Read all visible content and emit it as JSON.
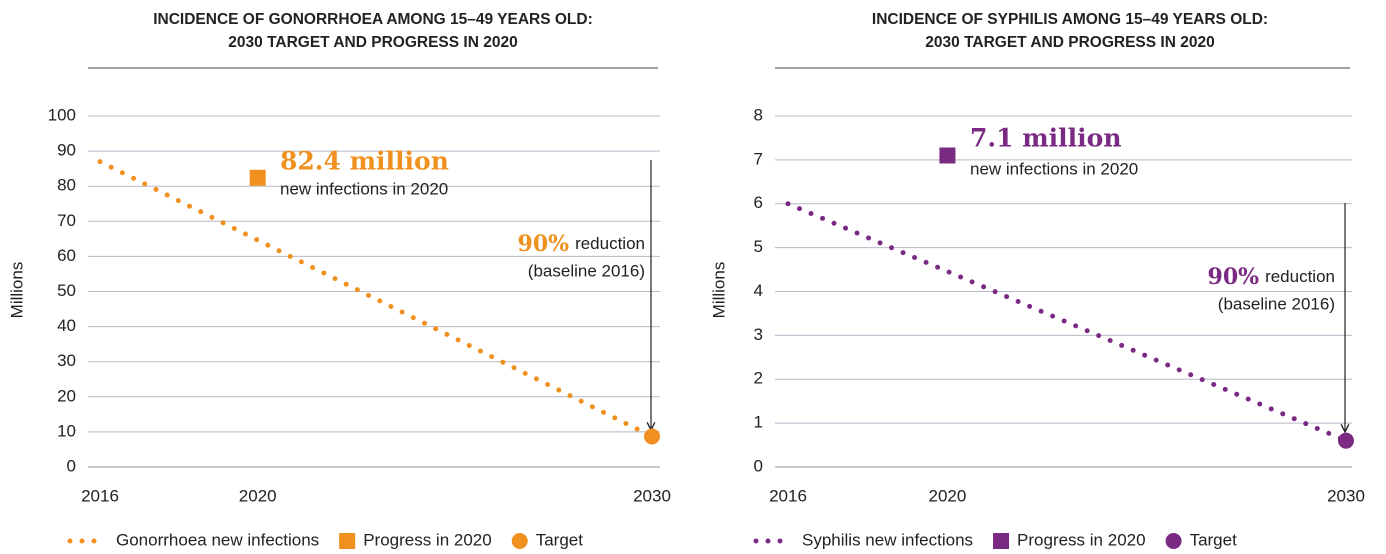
{
  "chart_data": [
    {
      "type": "line",
      "title": [
        "INCIDENCE OF GONORRHOEA AMONG 15–49 YEARS OLD:",
        "2030 TARGET AND PROGRESS IN 2020"
      ],
      "y_label": "Millions",
      "xlim": [
        2016,
        2030
      ],
      "xticks": [
        2016,
        2020,
        2030
      ],
      "ylim": [
        0,
        100
      ],
      "yticks": [
        0,
        10,
        20,
        30,
        40,
        50,
        60,
        70,
        80,
        90,
        100
      ],
      "grid": true,
      "series": [
        {
          "name": "Gonorrhoea new infections",
          "color": "#f0901e",
          "style": "dotted",
          "x": [
            2016,
            2030
          ],
          "values": [
            87,
            8.7
          ]
        },
        {
          "name": "Progress in 2020",
          "color": "#f0901e",
          "marker": "square",
          "x": [
            2020
          ],
          "values": [
            82.4
          ],
          "value_labels": [
            "82.4 million"
          ]
        },
        {
          "name": "Target",
          "color": "#f0901e",
          "marker": "circle",
          "x": [
            2030
          ],
          "values": [
            8.7
          ]
        }
      ],
      "annotations": [
        "new infections in 2020",
        "90%",
        "reduction",
        "(baseline 2016)"
      ]
    },
    {
      "type": "line",
      "title": [
        "INCIDENCE OF SYPHILIS AMONG 15–49 YEARS OLD:",
        "2030 TARGET AND PROGRESS IN 2020"
      ],
      "y_label": "Millions",
      "xlim": [
        2016,
        2030
      ],
      "xticks": [
        2016,
        2020,
        2030
      ],
      "ylim": [
        0,
        8
      ],
      "yticks": [
        0,
        1,
        2,
        3,
        4,
        5,
        6,
        7,
        8
      ],
      "grid": true,
      "series": [
        {
          "name": "Syphilis new infections",
          "color": "#7b2a83",
          "style": "dotted",
          "x": [
            2016,
            2030
          ],
          "values": [
            6,
            0.6
          ]
        },
        {
          "name": "Progress in 2020",
          "color": "#7b2a83",
          "marker": "square",
          "x": [
            2020
          ],
          "values": [
            7.1
          ],
          "value_labels": [
            "7.1 million"
          ]
        },
        {
          "name": "Target",
          "color": "#7b2a83",
          "marker": "circle",
          "x": [
            2030
          ],
          "values": [
            0.6
          ]
        }
      ],
      "annotations": [
        "new infections in 2020",
        "90%",
        "reduction",
        "(baseline 2016)"
      ]
    }
  ]
}
